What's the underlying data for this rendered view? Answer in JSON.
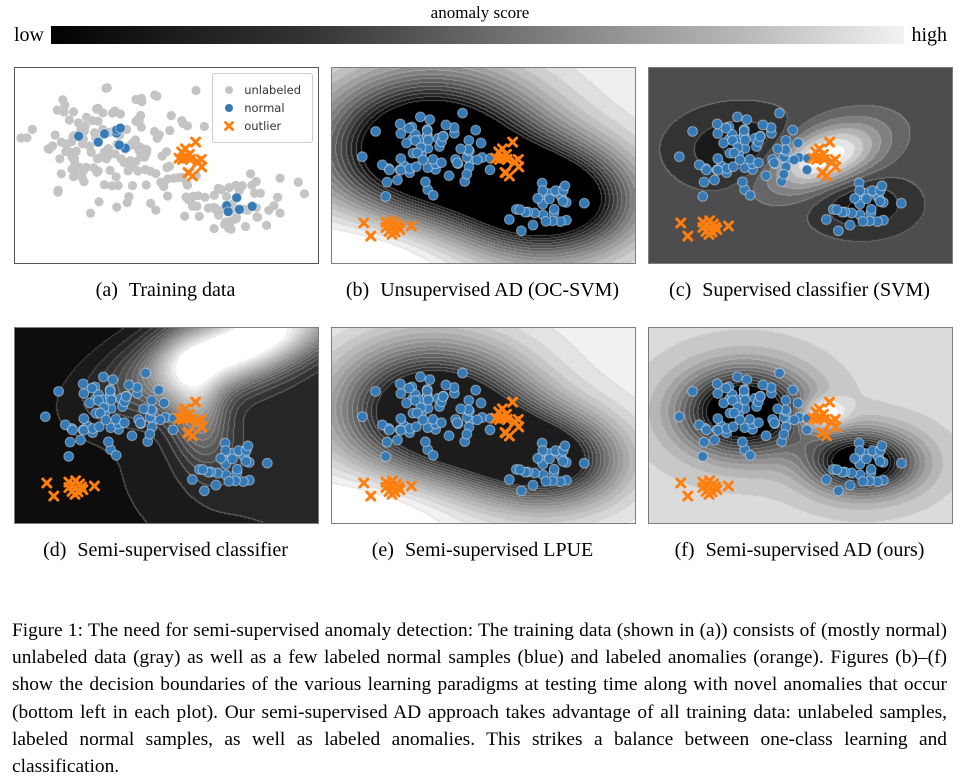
{
  "colorbar": {
    "title": "anomaly score",
    "low": "low",
    "high": "high",
    "cmap_low": "#000000",
    "cmap_high": "#f2f2f2"
  },
  "legend": {
    "items": [
      {
        "label": "unlabeled",
        "marker": "circle",
        "color": "#c4c4c4"
      },
      {
        "label": "normal",
        "marker": "circle",
        "color": "#3579b5"
      },
      {
        "label": "outlier",
        "marker": "x",
        "color": "#ff7f0e"
      }
    ]
  },
  "caption": "Figure 1: The need for semi-supervised anomaly detection: The training data (shown in (a)) consists of (mostly normal) unlabeled data (gray) as well as a few labeled normal samples (blue) and labeled anomalies (orange). Figures (b)–(f) show the decision boundaries of the various learning paradigms at testing time along with novel anomalies that occur (bottom left in each plot). Our semi-supervised AD approach takes advantage of all training data: unlabeled samples, labeled normal samples, as well as labeled anomalies. This strikes a balance between one-class learning and classification.",
  "colors": {
    "unlabeled": "#c4c4c4",
    "normal_fill": "#3579b5",
    "normal_edge": "#ffffff",
    "outlier": "#ff7f0e",
    "panel_frame": "#7d7d7d",
    "panel_a_frame": "#565656",
    "contour_line": "#c8c8c8"
  },
  "chart_data": {
    "type": "scatter",
    "description": "Six 2-D panels: (a) training data; (b)-(f) grayscale anomaly-score contour surfaces (dark = low score, light = high score) with test points. Two normal clusters, one labeled-anomaly cluster (center), novel anomalies bottom-left.",
    "clusters": {
      "unlabeled_big": {
        "role": "unlabeled",
        "cx": 0.315,
        "cy": 0.42,
        "sx": 0.125,
        "sy": 0.145,
        "n": 150,
        "seed": 11,
        "clip": 2.4
      },
      "unlabeled_small": {
        "role": "unlabeled",
        "cx": 0.725,
        "cy": 0.7,
        "sx": 0.075,
        "sy": 0.068,
        "n": 55,
        "seed": 22,
        "clip": 2.4
      },
      "unlabeled_strays": {
        "role": "unlabeled",
        "explicit": [
          [
            0.555,
            0.285
          ],
          [
            0.625,
            0.3
          ],
          [
            0.875,
            0.565
          ],
          [
            0.935,
            0.585
          ],
          [
            0.955,
            0.645
          ],
          [
            0.5,
            0.43
          ],
          [
            0.525,
            0.565
          ],
          [
            0.56,
            0.76
          ]
        ]
      },
      "labeled_normal_big": {
        "role": "normal",
        "cx": 0.3,
        "cy": 0.405,
        "sx": 0.066,
        "sy": 0.062,
        "n": 8,
        "seed": 33,
        "clip": 2.0
      },
      "labeled_normal_small": {
        "role": "normal",
        "cx": 0.73,
        "cy": 0.705,
        "sx": 0.033,
        "sy": 0.04,
        "n": 5,
        "seed": 44,
        "clip": 2.0
      },
      "test_big": {
        "role": "normal",
        "cx": 0.315,
        "cy": 0.43,
        "sx": 0.1,
        "sy": 0.105,
        "n": 72,
        "seed": 55,
        "clip": 2.3
      },
      "test_small": {
        "role": "normal",
        "cx": 0.705,
        "cy": 0.69,
        "sx": 0.065,
        "sy": 0.058,
        "n": 30,
        "seed": 66,
        "clip": 2.3
      },
      "test_strays": {
        "role": "normal",
        "explicit": [
          [
            0.1,
            0.455
          ],
          [
            0.625,
            0.835
          ]
        ]
      },
      "outliers": {
        "role": "outlier",
        "cx": 0.573,
        "cy": 0.465,
        "sx": 0.024,
        "sy": 0.046,
        "n": 16,
        "seed": 77,
        "clip": 2.0
      },
      "novel": {
        "role": "outlier",
        "explicit": [
          [
            0.105,
            0.795
          ],
          [
            0.128,
            0.862
          ],
          [
            0.178,
            0.79
          ],
          [
            0.2,
            0.783
          ],
          [
            0.192,
            0.806
          ],
          [
            0.213,
            0.8
          ],
          [
            0.178,
            0.818
          ],
          [
            0.198,
            0.822
          ],
          [
            0.219,
            0.816
          ],
          [
            0.188,
            0.838
          ],
          [
            0.208,
            0.84
          ],
          [
            0.224,
            0.829
          ],
          [
            0.198,
            0.853
          ],
          [
            0.262,
            0.81
          ]
        ]
      }
    },
    "panels": [
      {
        "id": "a",
        "label": "(a)",
        "caption": "Training data",
        "legend": true,
        "surface": null,
        "points": [
          "unlabeled_big",
          "unlabeled_small",
          "unlabeled_strays",
          "labeled_normal_big",
          "labeled_normal_small",
          "outliers"
        ]
      },
      {
        "id": "b",
        "label": "(b)",
        "caption": "Unsupervised AD (OC-SVM)",
        "surface": {
          "base": 0.97,
          "levels": 16,
          "min": 0,
          "max": 1,
          "components": [
            {
              "cx": 0.33,
              "cy": 0.42,
              "sx": 0.24,
              "sy": 0.26,
              "amp": -1.5
            },
            {
              "cx": 0.715,
              "cy": 0.68,
              "sx": 0.19,
              "sy": 0.19,
              "amp": -1.35
            },
            {
              "cx": 0.15,
              "cy": 0.92,
              "sx": 0.22,
              "sy": 0.18,
              "amp": 0.25
            }
          ]
        },
        "points": [
          "test_big",
          "test_small",
          "test_strays",
          "outliers",
          "novel"
        ]
      },
      {
        "id": "c",
        "label": "(c)",
        "caption": "Supervised classifier (SVM)",
        "surface": {
          "base": 0.285,
          "levels": 10,
          "min": 0.02,
          "max": 1,
          "components": [
            {
              "cx": 0.31,
              "cy": 0.42,
              "sx": 0.135,
              "sy": 0.125,
              "amp": -0.27
            },
            {
              "cx": 0.7,
              "cy": 0.7,
              "sx": 0.105,
              "sy": 0.095,
              "amp": -0.27
            },
            {
              "cx": 0.575,
              "cy": 0.46,
              "sx": 0.15,
              "sy": 0.09,
              "amp": 0.8,
              "rot": -0.7
            }
          ]
        },
        "points": [
          "test_big",
          "test_small",
          "test_strays",
          "outliers",
          "novel"
        ]
      },
      {
        "id": "d",
        "label": "(d)",
        "caption": "Semi-supervised classifier",
        "surface": {
          "base": 0.035,
          "levels": 20,
          "min": 0.01,
          "max": 1,
          "components": [
            {
              "cx": 0.75,
              "cy": 0.08,
              "sx": 0.26,
              "sy": 0.115,
              "amp": 1.15,
              "rot": -0.6
            },
            {
              "cx": 0.6,
              "cy": 0.4,
              "sx": 0.065,
              "sy": 0.2,
              "amp": 0.45,
              "rot": -0.12
            },
            {
              "cx": 1.0,
              "cy": 0.7,
              "sx": 0.42,
              "sy": 0.4,
              "amp": 0.13
            }
          ]
        },
        "points": [
          "test_big",
          "test_small",
          "test_strays",
          "outliers",
          "novel"
        ]
      },
      {
        "id": "e",
        "label": "(e)",
        "caption": "Semi-supervised LPUE",
        "surface": {
          "base": 0.955,
          "levels": 18,
          "min": 0.1,
          "max": 1,
          "components": [
            {
              "cx": 0.33,
              "cy": 0.42,
              "sx": 0.21,
              "sy": 0.23,
              "amp": -1.15
            },
            {
              "cx": 0.71,
              "cy": 0.68,
              "sx": 0.165,
              "sy": 0.16,
              "amp": -1.0
            },
            {
              "cx": 0.5,
              "cy": 0.56,
              "sx": 0.17,
              "sy": 0.17,
              "amp": -0.35
            },
            {
              "cx": 0.14,
              "cy": 0.92,
              "sx": 0.2,
              "sy": 0.16,
              "amp": 0.18
            }
          ]
        },
        "points": [
          "test_big",
          "test_small",
          "test_strays",
          "outliers",
          "novel"
        ]
      },
      {
        "id": "f",
        "label": "(f)",
        "caption": "Semi-supervised AD (ours)",
        "surface": {
          "base": 0.845,
          "levels": 14,
          "min": 0.02,
          "max": 1,
          "components": [
            {
              "cx": 0.315,
              "cy": 0.43,
              "sx": 0.14,
              "sy": 0.15,
              "amp": -1.2
            },
            {
              "cx": 0.705,
              "cy": 0.69,
              "sx": 0.12,
              "sy": 0.11,
              "amp": -1.1
            },
            {
              "cx": 0.573,
              "cy": 0.44,
              "sx": 0.055,
              "sy": 0.055,
              "amp": 0.45
            }
          ]
        },
        "points": [
          "test_big",
          "test_small",
          "test_strays",
          "outliers",
          "novel"
        ]
      }
    ]
  }
}
